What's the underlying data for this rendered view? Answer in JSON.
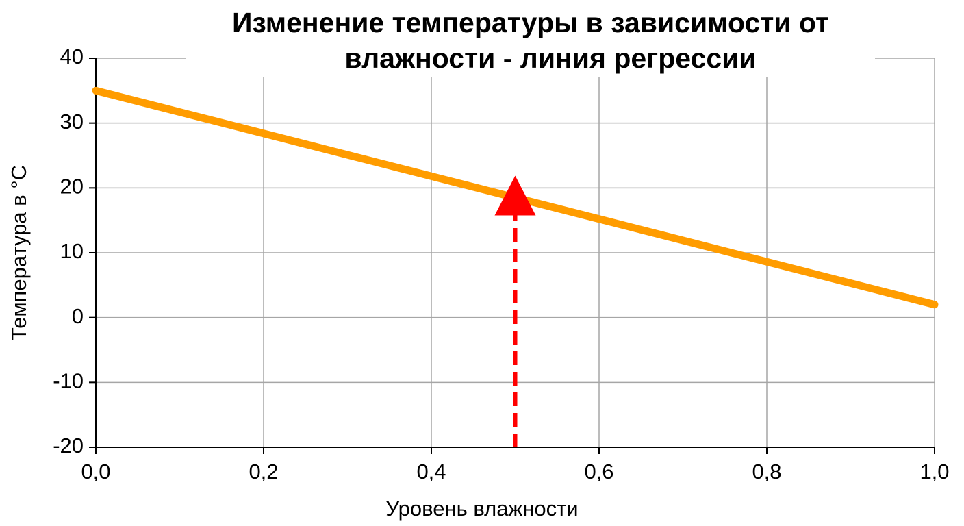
{
  "chart_data": {
    "type": "line",
    "title": [
      "Изменение температуры в зависимости от",
      "влажности - линия регрессии"
    ],
    "x_label": "Уровень влажности",
    "y_label": "Температура в °C",
    "x": [
      0,
      1
    ],
    "series": [
      {
        "color": "#ff9c00",
        "values": [
          35,
          2
        ]
      }
    ],
    "marker": {
      "x": 0.5,
      "y": 18.5,
      "color": "#ff0000"
    },
    "xlim": [
      0,
      1
    ],
    "xticks": [
      {
        "value": 0,
        "label": "0,0"
      },
      {
        "value": 0.2,
        "label": "0,2"
      },
      {
        "value": 0.4,
        "label": "0,4"
      },
      {
        "value": 0.6,
        "label": "0,6"
      },
      {
        "value": 0.8,
        "label": "0,8"
      },
      {
        "value": 1,
        "label": "1,0"
      }
    ],
    "ylim": [
      -20,
      40
    ],
    "yticks": [
      -20,
      -10,
      0,
      10,
      20,
      30,
      40
    ],
    "grid": true
  }
}
